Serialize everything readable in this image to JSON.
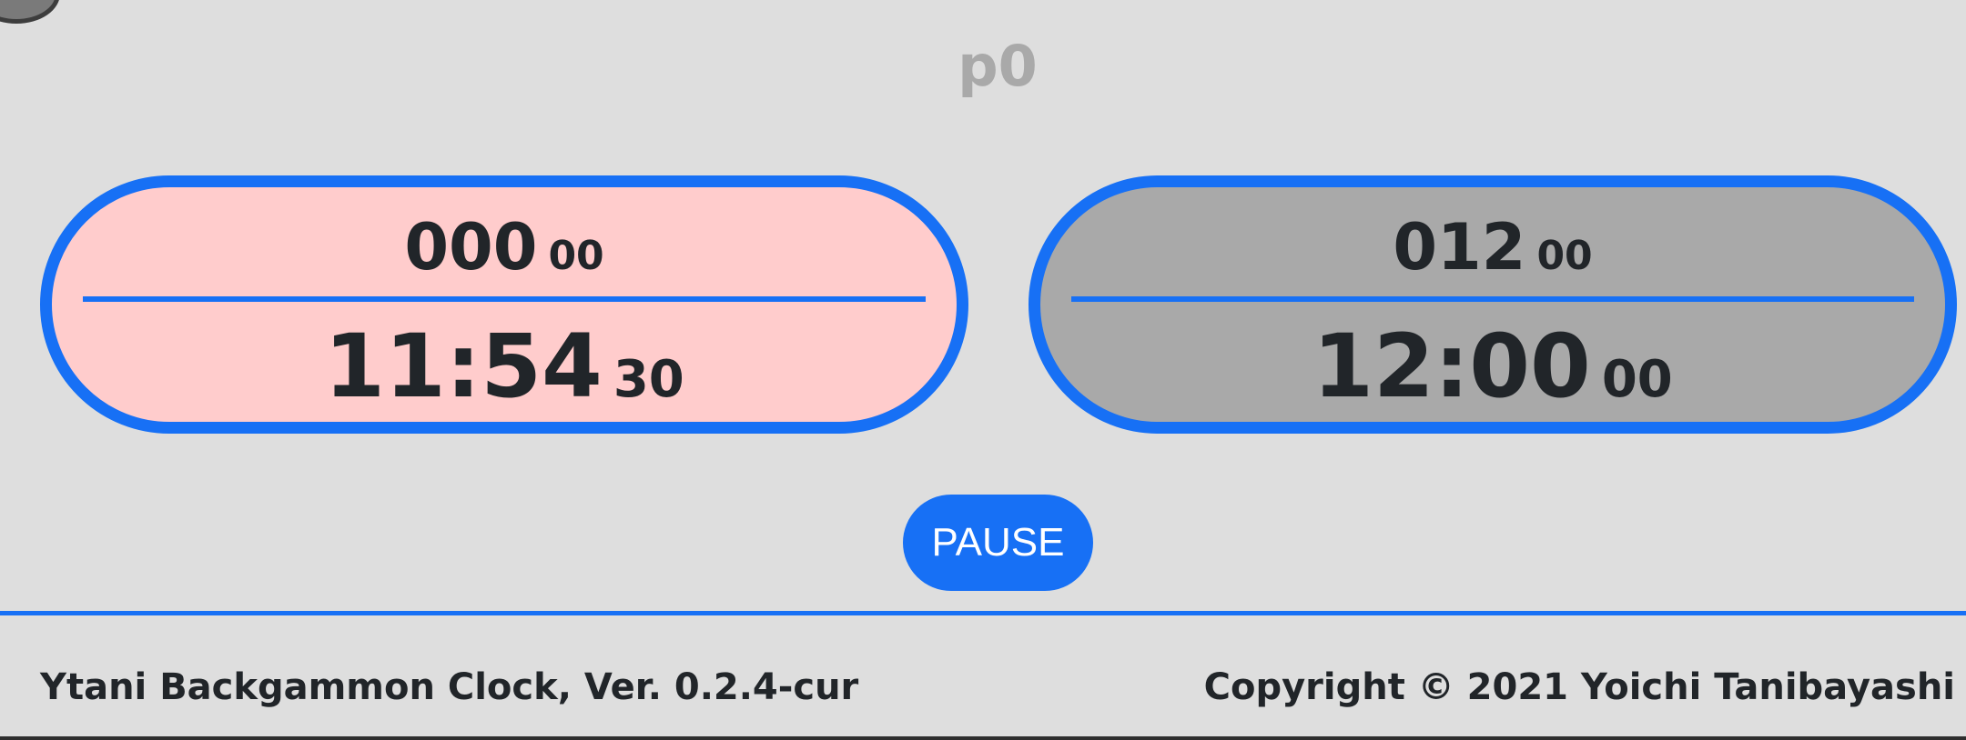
{
  "header": {
    "player_id": "p0"
  },
  "clocks": {
    "left": {
      "score_main": "000",
      "score_sub": "00",
      "time_main": "11:54",
      "time_sub": "30",
      "background_color": "#ffcccc"
    },
    "right": {
      "score_main": "012",
      "score_sub": "00",
      "time_main": "12:00",
      "time_sub": "00",
      "background_color": "#a9a9a9"
    }
  },
  "controls": {
    "pause_label": "PAUSE"
  },
  "footer": {
    "app_version": "Ytani Backgammon Clock, Ver. 0.2.4-cur",
    "copyright": "Copyright © 2021 Yoichi Tanibayashi"
  },
  "colors": {
    "accent": "#1770f5",
    "background": "#dedede",
    "text": "#212529",
    "player_id_text": "#a9a9a9"
  }
}
